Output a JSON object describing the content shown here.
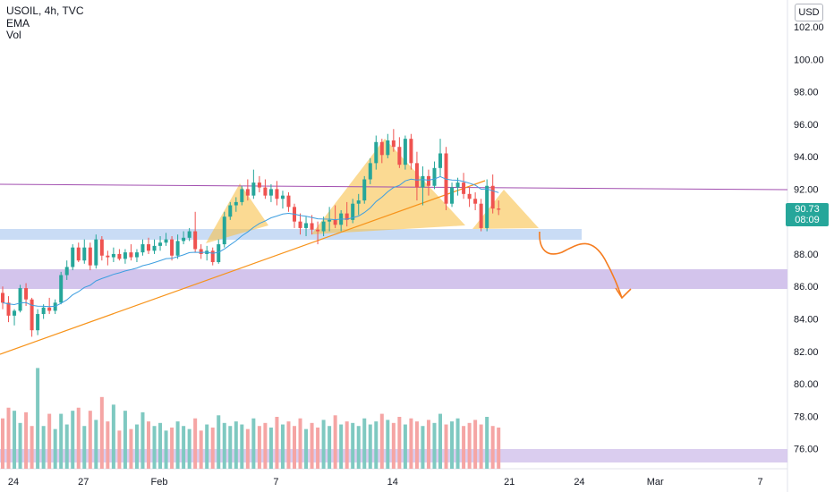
{
  "legend": {
    "symbol": "USOIL, 4h, TVC",
    "ema": "EMA",
    "vol": "Vol"
  },
  "currency": "USD",
  "last_price": {
    "price": "90.73",
    "countdown": "08:09"
  },
  "chart_data": {
    "type": "candlestick",
    "symbol": "USOIL",
    "interval": "4h",
    "source": "TVC",
    "y_ticks": [
      "102.00",
      "100.00",
      "98.00",
      "96.00",
      "94.00",
      "92.00",
      "90.00",
      "88.00",
      "86.00",
      "84.00",
      "82.00",
      "80.00",
      "78.00",
      "76.00"
    ],
    "ylim": [
      74.4,
      103.2
    ],
    "x_ticks": [
      {
        "label": "24",
        "bar": 0
      },
      {
        "label": "27",
        "bar": 12
      },
      {
        "label": "Feb",
        "bar": 25
      },
      {
        "label": "7",
        "bar": 45
      },
      {
        "label": "14",
        "bar": 65
      },
      {
        "label": "21",
        "bar": 85
      },
      {
        "label": "24",
        "bar": 97
      },
      {
        "label": "Mar",
        "bar": 110
      },
      {
        "label": "7",
        "bar": 128
      }
    ],
    "candles": [
      [
        85.6,
        86.0,
        84.6,
        85.0
      ],
      [
        85.0,
        85.4,
        83.8,
        84.2
      ],
      [
        84.2,
        84.6,
        83.6,
        84.5
      ],
      [
        84.5,
        86.1,
        84.4,
        85.9
      ],
      [
        85.9,
        86.2,
        84.8,
        85.2
      ],
      [
        85.2,
        85.3,
        82.9,
        83.3
      ],
      [
        83.3,
        84.6,
        83.0,
        84.3
      ],
      [
        84.3,
        84.9,
        84.0,
        84.7
      ],
      [
        84.7,
        85.3,
        84.3,
        84.5
      ],
      [
        84.5,
        85.2,
        84.3,
        85.0
      ],
      [
        85.0,
        86.9,
        84.9,
        86.7
      ],
      [
        86.7,
        87.6,
        86.4,
        87.2
      ],
      [
        87.2,
        88.6,
        87.0,
        88.4
      ],
      [
        88.4,
        88.7,
        87.5,
        87.6
      ],
      [
        87.6,
        88.9,
        87.4,
        88.4
      ],
      [
        88.4,
        88.7,
        87.0,
        87.3
      ],
      [
        87.3,
        89.2,
        87.1,
        88.9
      ],
      [
        88.9,
        89.1,
        87.6,
        87.9
      ],
      [
        87.9,
        88.2,
        87.3,
        87.8
      ],
      [
        87.8,
        88.4,
        87.5,
        88.0
      ],
      [
        88.0,
        88.3,
        87.6,
        87.7
      ],
      [
        87.7,
        88.3,
        87.4,
        88.1
      ],
      [
        88.1,
        88.6,
        87.6,
        87.8
      ],
      [
        87.8,
        88.3,
        87.5,
        88.1
      ],
      [
        88.1,
        88.9,
        87.9,
        88.6
      ],
      [
        88.6,
        89.0,
        88.0,
        88.2
      ],
      [
        88.2,
        88.9,
        88.0,
        88.5
      ],
      [
        88.5,
        89.1,
        88.2,
        88.7
      ],
      [
        88.7,
        89.3,
        88.5,
        88.9
      ],
      [
        88.9,
        89.1,
        87.6,
        87.9
      ],
      [
        87.9,
        89.2,
        87.7,
        88.8
      ],
      [
        88.8,
        89.4,
        88.6,
        89.0
      ],
      [
        89.0,
        89.6,
        88.8,
        89.4
      ],
      [
        89.4,
        90.6,
        88.1,
        88.3
      ],
      [
        88.3,
        88.6,
        87.7,
        88.0
      ],
      [
        88.0,
        88.5,
        87.6,
        88.2
      ],
      [
        88.2,
        88.4,
        87.3,
        87.5
      ],
      [
        87.5,
        88.9,
        87.4,
        88.6
      ],
      [
        88.6,
        90.6,
        88.4,
        90.3
      ],
      [
        90.3,
        91.2,
        90.1,
        91.0
      ],
      [
        91.0,
        91.5,
        90.6,
        91.2
      ],
      [
        91.2,
        92.2,
        91.0,
        92.0
      ],
      [
        92.0,
        92.6,
        91.3,
        91.6
      ],
      [
        91.6,
        93.2,
        91.4,
        92.4
      ],
      [
        92.4,
        92.8,
        91.8,
        92.1
      ],
      [
        92.1,
        92.6,
        91.4,
        91.6
      ],
      [
        91.6,
        92.3,
        91.2,
        92.0
      ],
      [
        92.0,
        92.5,
        91.0,
        91.4
      ],
      [
        91.4,
        91.9,
        90.8,
        91.6
      ],
      [
        91.6,
        91.8,
        90.6,
        90.9
      ],
      [
        90.9,
        91.1,
        89.6,
        90.0
      ],
      [
        90.0,
        90.5,
        89.2,
        89.6
      ],
      [
        89.6,
        90.3,
        89.1,
        89.9
      ],
      [
        89.9,
        90.4,
        89.2,
        89.5
      ],
      [
        89.5,
        90.0,
        88.6,
        89.4
      ],
      [
        89.4,
        90.3,
        89.1,
        90.0
      ],
      [
        90.0,
        90.9,
        89.4,
        90.1
      ],
      [
        90.1,
        91.0,
        89.6,
        89.8
      ],
      [
        89.8,
        90.7,
        89.4,
        90.5
      ],
      [
        90.5,
        91.2,
        89.7,
        90.1
      ],
      [
        90.1,
        91.4,
        89.9,
        91.1
      ],
      [
        91.1,
        91.7,
        90.4,
        91.3
      ],
      [
        91.3,
        92.8,
        91.1,
        92.6
      ],
      [
        92.6,
        93.9,
        92.3,
        93.6
      ],
      [
        93.6,
        95.3,
        93.2,
        94.9
      ],
      [
        94.9,
        95.1,
        93.6,
        94.1
      ],
      [
        94.1,
        95.4,
        93.9,
        95.0
      ],
      [
        95.0,
        95.7,
        94.3,
        94.6
      ],
      [
        94.6,
        95.2,
        93.3,
        93.5
      ],
      [
        93.5,
        95.3,
        93.2,
        95.1
      ],
      [
        95.1,
        95.4,
        93.2,
        93.6
      ],
      [
        93.6,
        94.3,
        91.3,
        92.1
      ],
      [
        92.1,
        93.4,
        91.0,
        92.8
      ],
      [
        92.8,
        93.2,
        91.6,
        92.2
      ],
      [
        92.2,
        93.7,
        92.0,
        93.3
      ],
      [
        93.3,
        95.1,
        92.8,
        94.2
      ],
      [
        94.2,
        94.6,
        90.7,
        91.1
      ],
      [
        91.1,
        92.4,
        90.9,
        92.1
      ],
      [
        92.1,
        92.7,
        91.6,
        92.4
      ],
      [
        92.4,
        93.0,
        91.4,
        91.7
      ],
      [
        91.7,
        92.1,
        90.9,
        91.4
      ],
      [
        91.4,
        91.8,
        90.7,
        91.1
      ],
      [
        91.1,
        91.4,
        89.4,
        89.6
      ],
      [
        89.6,
        92.6,
        89.4,
        92.2
      ],
      [
        92.2,
        92.9,
        90.5,
        90.8
      ],
      [
        90.8,
        91.3,
        90.4,
        90.73
      ]
    ],
    "volume": [
      33,
      40,
      38,
      30,
      37,
      28,
      66,
      28,
      36,
      26,
      36,
      29,
      38,
      40,
      28,
      38,
      32,
      47,
      31,
      42,
      25,
      38,
      26,
      29,
      37,
      31,
      28,
      30,
      25,
      27,
      31,
      28,
      26,
      33,
      25,
      29,
      27,
      35,
      30,
      28,
      31,
      29,
      26,
      33,
      28,
      30,
      27,
      34,
      29,
      31,
      28,
      33,
      26,
      30,
      27,
      32,
      28,
      35,
      29,
      31,
      30,
      28,
      33,
      29,
      31,
      36,
      32,
      30,
      34,
      29,
      33,
      31,
      28,
      32,
      30,
      36,
      29,
      31,
      33,
      28,
      30,
      32,
      29,
      34,
      28,
      27
    ],
    "volume_ylim": [
      0,
      160
    ]
  }
}
